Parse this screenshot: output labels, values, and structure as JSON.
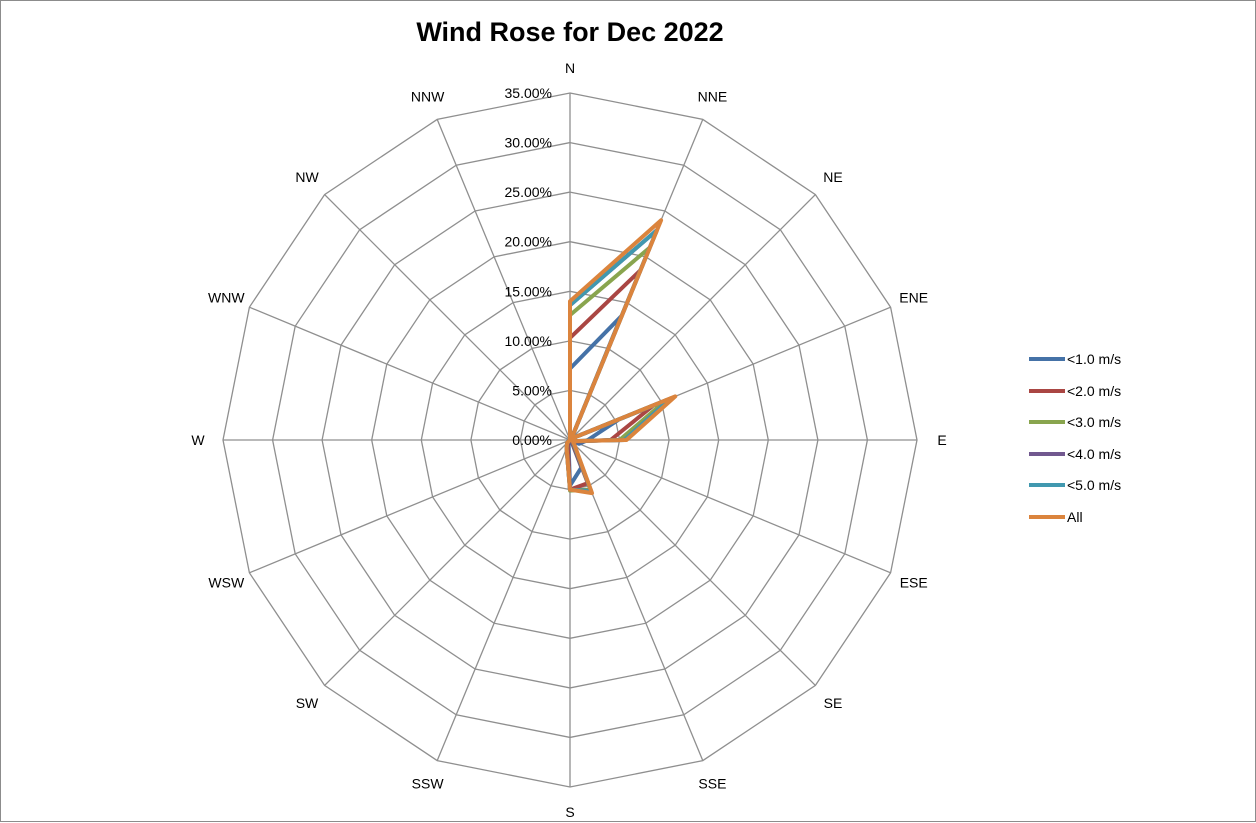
{
  "chart_data": {
    "type": "radar",
    "title": "Wind Rose for Dec 2022",
    "categories": [
      "N",
      "NNE",
      "NE",
      "ENE",
      "E",
      "ESE",
      "SE",
      "SSE",
      "S",
      "SSW",
      "SW",
      "WSW",
      "W",
      "WNW",
      "NW",
      "NNW"
    ],
    "radial_ticks": [
      "0.00%",
      "5.00%",
      "10.00%",
      "15.00%",
      "20.00%",
      "25.00%",
      "30.00%",
      "35.00%"
    ],
    "rmax": 35,
    "grid": true,
    "legend_position": "right",
    "series": [
      {
        "name": "<1.0 m/s",
        "color": "#4572a7",
        "values": [
          7.2,
          13.5,
          0.2,
          5.2,
          1.8,
          1.0,
          0.2,
          3.0,
          4.6,
          0.4,
          0.2,
          0.0,
          0.0,
          0.0,
          0.0,
          0.0
        ]
      },
      {
        "name": "<2.0 m/s",
        "color": "#aa4643",
        "values": [
          10.3,
          18.5,
          0.2,
          9.1,
          4.1,
          0.4,
          0.3,
          4.7,
          5.0,
          0.6,
          0.3,
          0.0,
          0.0,
          0.0,
          0.0,
          0.0
        ]
      },
      {
        "name": "<3.0 m/s",
        "color": "#89a54e",
        "values": [
          12.6,
          21.0,
          0.2,
          10.5,
          5.0,
          0.3,
          0.5,
          5.4,
          5.1,
          0.9,
          0.4,
          0.0,
          0.0,
          0.0,
          0.0,
          0.0
        ]
      },
      {
        "name": "<4.0 m/s",
        "color": "#71588f",
        "values": [
          13.6,
          22.9,
          0.2,
          11.0,
          5.5,
          0.3,
          0.5,
          5.6,
          5.0,
          0.9,
          0.4,
          0.0,
          0.0,
          0.0,
          0.0,
          0.0
        ]
      },
      {
        "name": "<5.0 m/s",
        "color": "#4198af",
        "values": [
          13.6,
          22.9,
          0.2,
          11.0,
          5.5,
          0.3,
          0.5,
          5.6,
          5.0,
          0.9,
          0.4,
          0.0,
          0.0,
          0.0,
          0.0,
          0.0
        ]
      },
      {
        "name": "All",
        "color": "#db843d",
        "values": [
          14.0,
          24.0,
          0.2,
          11.5,
          5.7,
          0.3,
          0.6,
          5.8,
          5.0,
          0.9,
          0.4,
          0.0,
          0.0,
          0.0,
          0.0,
          0.0
        ]
      }
    ]
  }
}
